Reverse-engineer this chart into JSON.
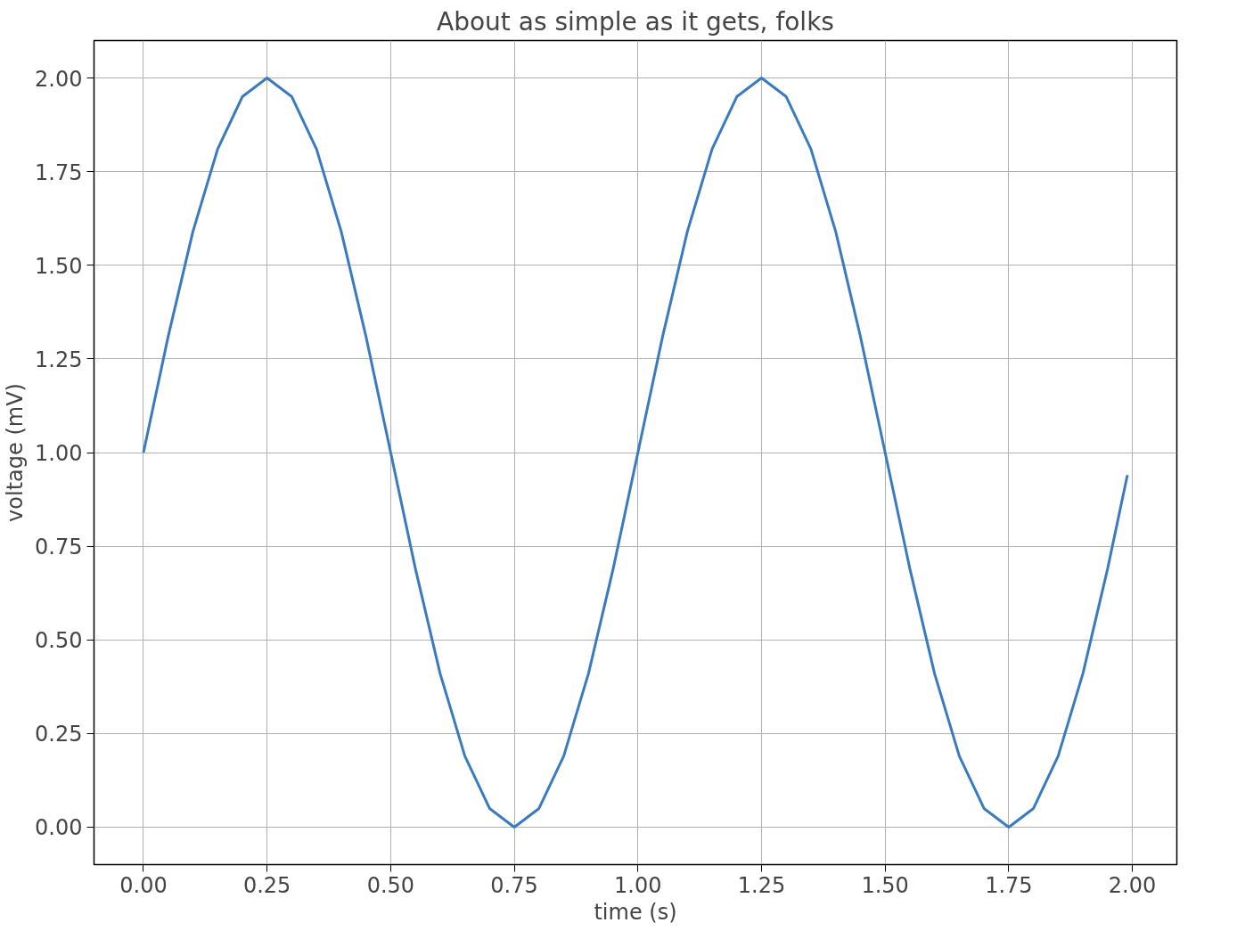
{
  "chart_data": {
    "type": "line",
    "title": "About as simple as it gets, folks",
    "xlabel": "time (s)",
    "ylabel": "voltage (mV)",
    "x": [
      0,
      0.05,
      0.1,
      0.15,
      0.2,
      0.25,
      0.3,
      0.35,
      0.4,
      0.45,
      0.5,
      0.55,
      0.6,
      0.65,
      0.7,
      0.75,
      0.8,
      0.85,
      0.9,
      0.95,
      1.0,
      1.05,
      1.1,
      1.15,
      1.2,
      1.25,
      1.3,
      1.35,
      1.4,
      1.45,
      1.5,
      1.55,
      1.6,
      1.65,
      1.7,
      1.75,
      1.8,
      1.85,
      1.9,
      1.95,
      1.99
    ],
    "series": [
      {
        "color": "#3a7bbf",
        "values": [
          1.0,
          1.31,
          1.59,
          1.81,
          1.95,
          2.0,
          1.95,
          1.81,
          1.59,
          1.31,
          1.0,
          0.69,
          0.41,
          0.19,
          0.05,
          0.0,
          0.05,
          0.19,
          0.41,
          0.69,
          1.0,
          1.31,
          1.59,
          1.81,
          1.95,
          2.0,
          1.95,
          1.81,
          1.59,
          1.31,
          1.0,
          0.69,
          0.41,
          0.19,
          0.05,
          0.0,
          0.05,
          0.19,
          0.41,
          0.69,
          0.94
        ]
      }
    ],
    "xlim": [
      -0.1,
      2.09
    ],
    "ylim": [
      -0.1,
      2.1
    ],
    "xticks": [
      {
        "value": 0,
        "label": "0.00"
      },
      {
        "value": 0.25,
        "label": "0.25"
      },
      {
        "value": 0.5,
        "label": "0.50"
      },
      {
        "value": 0.75,
        "label": "0.75"
      },
      {
        "value": 1.0,
        "label": "1.00"
      },
      {
        "value": 1.25,
        "label": "1.25"
      },
      {
        "value": 1.5,
        "label": "1.50"
      },
      {
        "value": 1.75,
        "label": "1.75"
      },
      {
        "value": 2.0,
        "label": "2.00"
      }
    ],
    "yticks": [
      {
        "value": 0,
        "label": "0.00"
      },
      {
        "value": 0.25,
        "label": "0.25"
      },
      {
        "value": 0.5,
        "label": "0.50"
      },
      {
        "value": 0.75,
        "label": "0.75"
      },
      {
        "value": 1.0,
        "label": "1.00"
      },
      {
        "value": 1.25,
        "label": "1.25"
      },
      {
        "value": 1.5,
        "label": "1.50"
      },
      {
        "value": 1.75,
        "label": "1.75"
      },
      {
        "value": 2.0,
        "label": "2.00"
      }
    ],
    "grid": true,
    "line_style": "solid",
    "marker": "none"
  }
}
